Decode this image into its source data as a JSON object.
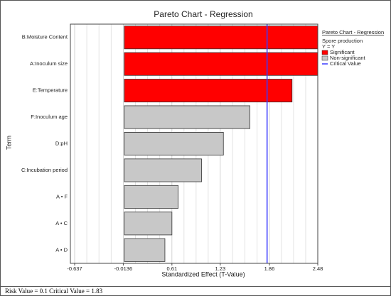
{
  "chart_data": {
    "type": "barh",
    "title": "Pareto Chart - Regression",
    "xlabel": "Standardized Effect (T-Value)",
    "ylabel": "Term",
    "categories": [
      "B:Moisture Content",
      "A:Inoculum size",
      "E:Temperature",
      "F:Inoculum age",
      "D:pH",
      "C:Incubation period",
      "A • F",
      "A • C",
      "A • D"
    ],
    "values": [
      2.6,
      2.55,
      2.15,
      1.61,
      1.27,
      0.99,
      0.69,
      0.61,
      0.52
    ],
    "colors": [
      "#ff0000",
      "#ff0000",
      "#ff0000",
      "#c8c8c8",
      "#c8c8c8",
      "#c8c8c8",
      "#c8c8c8",
      "#c8c8c8",
      "#c8c8c8"
    ],
    "xlim": [
      -0.637,
      2.48
    ],
    "xticks": [
      -0.637,
      -0.0136,
      0.61,
      1.23,
      1.86,
      2.48
    ],
    "grid": true,
    "critical_value": 1.83,
    "critical_color": "#3a3aff",
    "legend": {
      "title": "Pareto Chart - Regression",
      "subtitle": "Spore production",
      "response": "Y = Y",
      "entries": [
        {
          "name": "Significant",
          "color": "#ff0000"
        },
        {
          "name": "Non-significant",
          "color": "#c8c8c8"
        }
      ],
      "line_entry": "Critical Value"
    },
    "footer": {
      "risk_label": "Risk Value =",
      "risk_value": 0.1,
      "critical_label": "Critical Value =",
      "critical_value": 1.83
    }
  }
}
